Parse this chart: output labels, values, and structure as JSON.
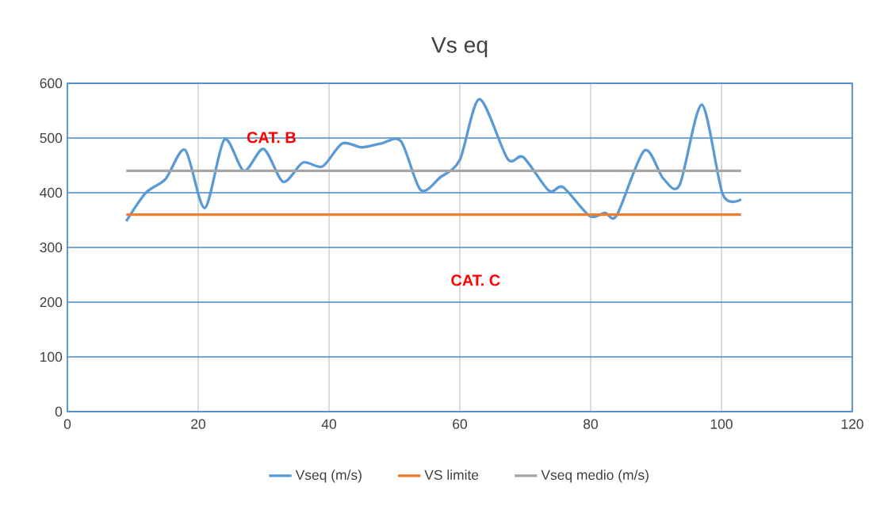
{
  "chart_data": {
    "type": "line",
    "title": "Vs eq",
    "xlim": [
      0,
      120
    ],
    "xticks": [
      0,
      20,
      40,
      60,
      80,
      100,
      120
    ],
    "ylim": [
      0,
      600
    ],
    "yticks": [
      0,
      100,
      200,
      300,
      400,
      500,
      600
    ],
    "grid": true,
    "legend": "bottom",
    "marker": "none",
    "line_style": "solid",
    "series": [
      {
        "name": "Vseq (m/s)",
        "color": "#5b9bd5",
        "x": [
          9,
          12,
          15,
          18,
          21,
          24,
          27,
          30,
          33,
          36,
          39,
          42,
          45,
          48,
          51,
          54,
          57,
          60,
          63,
          67.3,
          69.7,
          73.6,
          75.8,
          79.8,
          82.2,
          84,
          88.2,
          91.1,
          93.6,
          97,
          100.2,
          103
        ],
        "values": [
          348,
          400,
          425,
          478,
          372,
          497,
          440,
          480,
          420,
          455,
          448,
          490,
          483,
          490,
          494,
          405,
          428,
          460,
          571,
          462,
          465,
          404,
          410,
          358,
          363,
          359,
          477,
          426,
          414,
          561,
          397,
          388
        ]
      },
      {
        "name": "VS limite",
        "color": "#ed7d31",
        "x": [
          9,
          103
        ],
        "values": [
          360,
          360
        ]
      },
      {
        "name": "Vseq medio (m/s)",
        "color": "#a5a5a5",
        "x": [
          9,
          103
        ],
        "values": [
          440,
          440
        ]
      }
    ],
    "annotations": [
      "CAT. B",
      "CAT. C"
    ]
  }
}
